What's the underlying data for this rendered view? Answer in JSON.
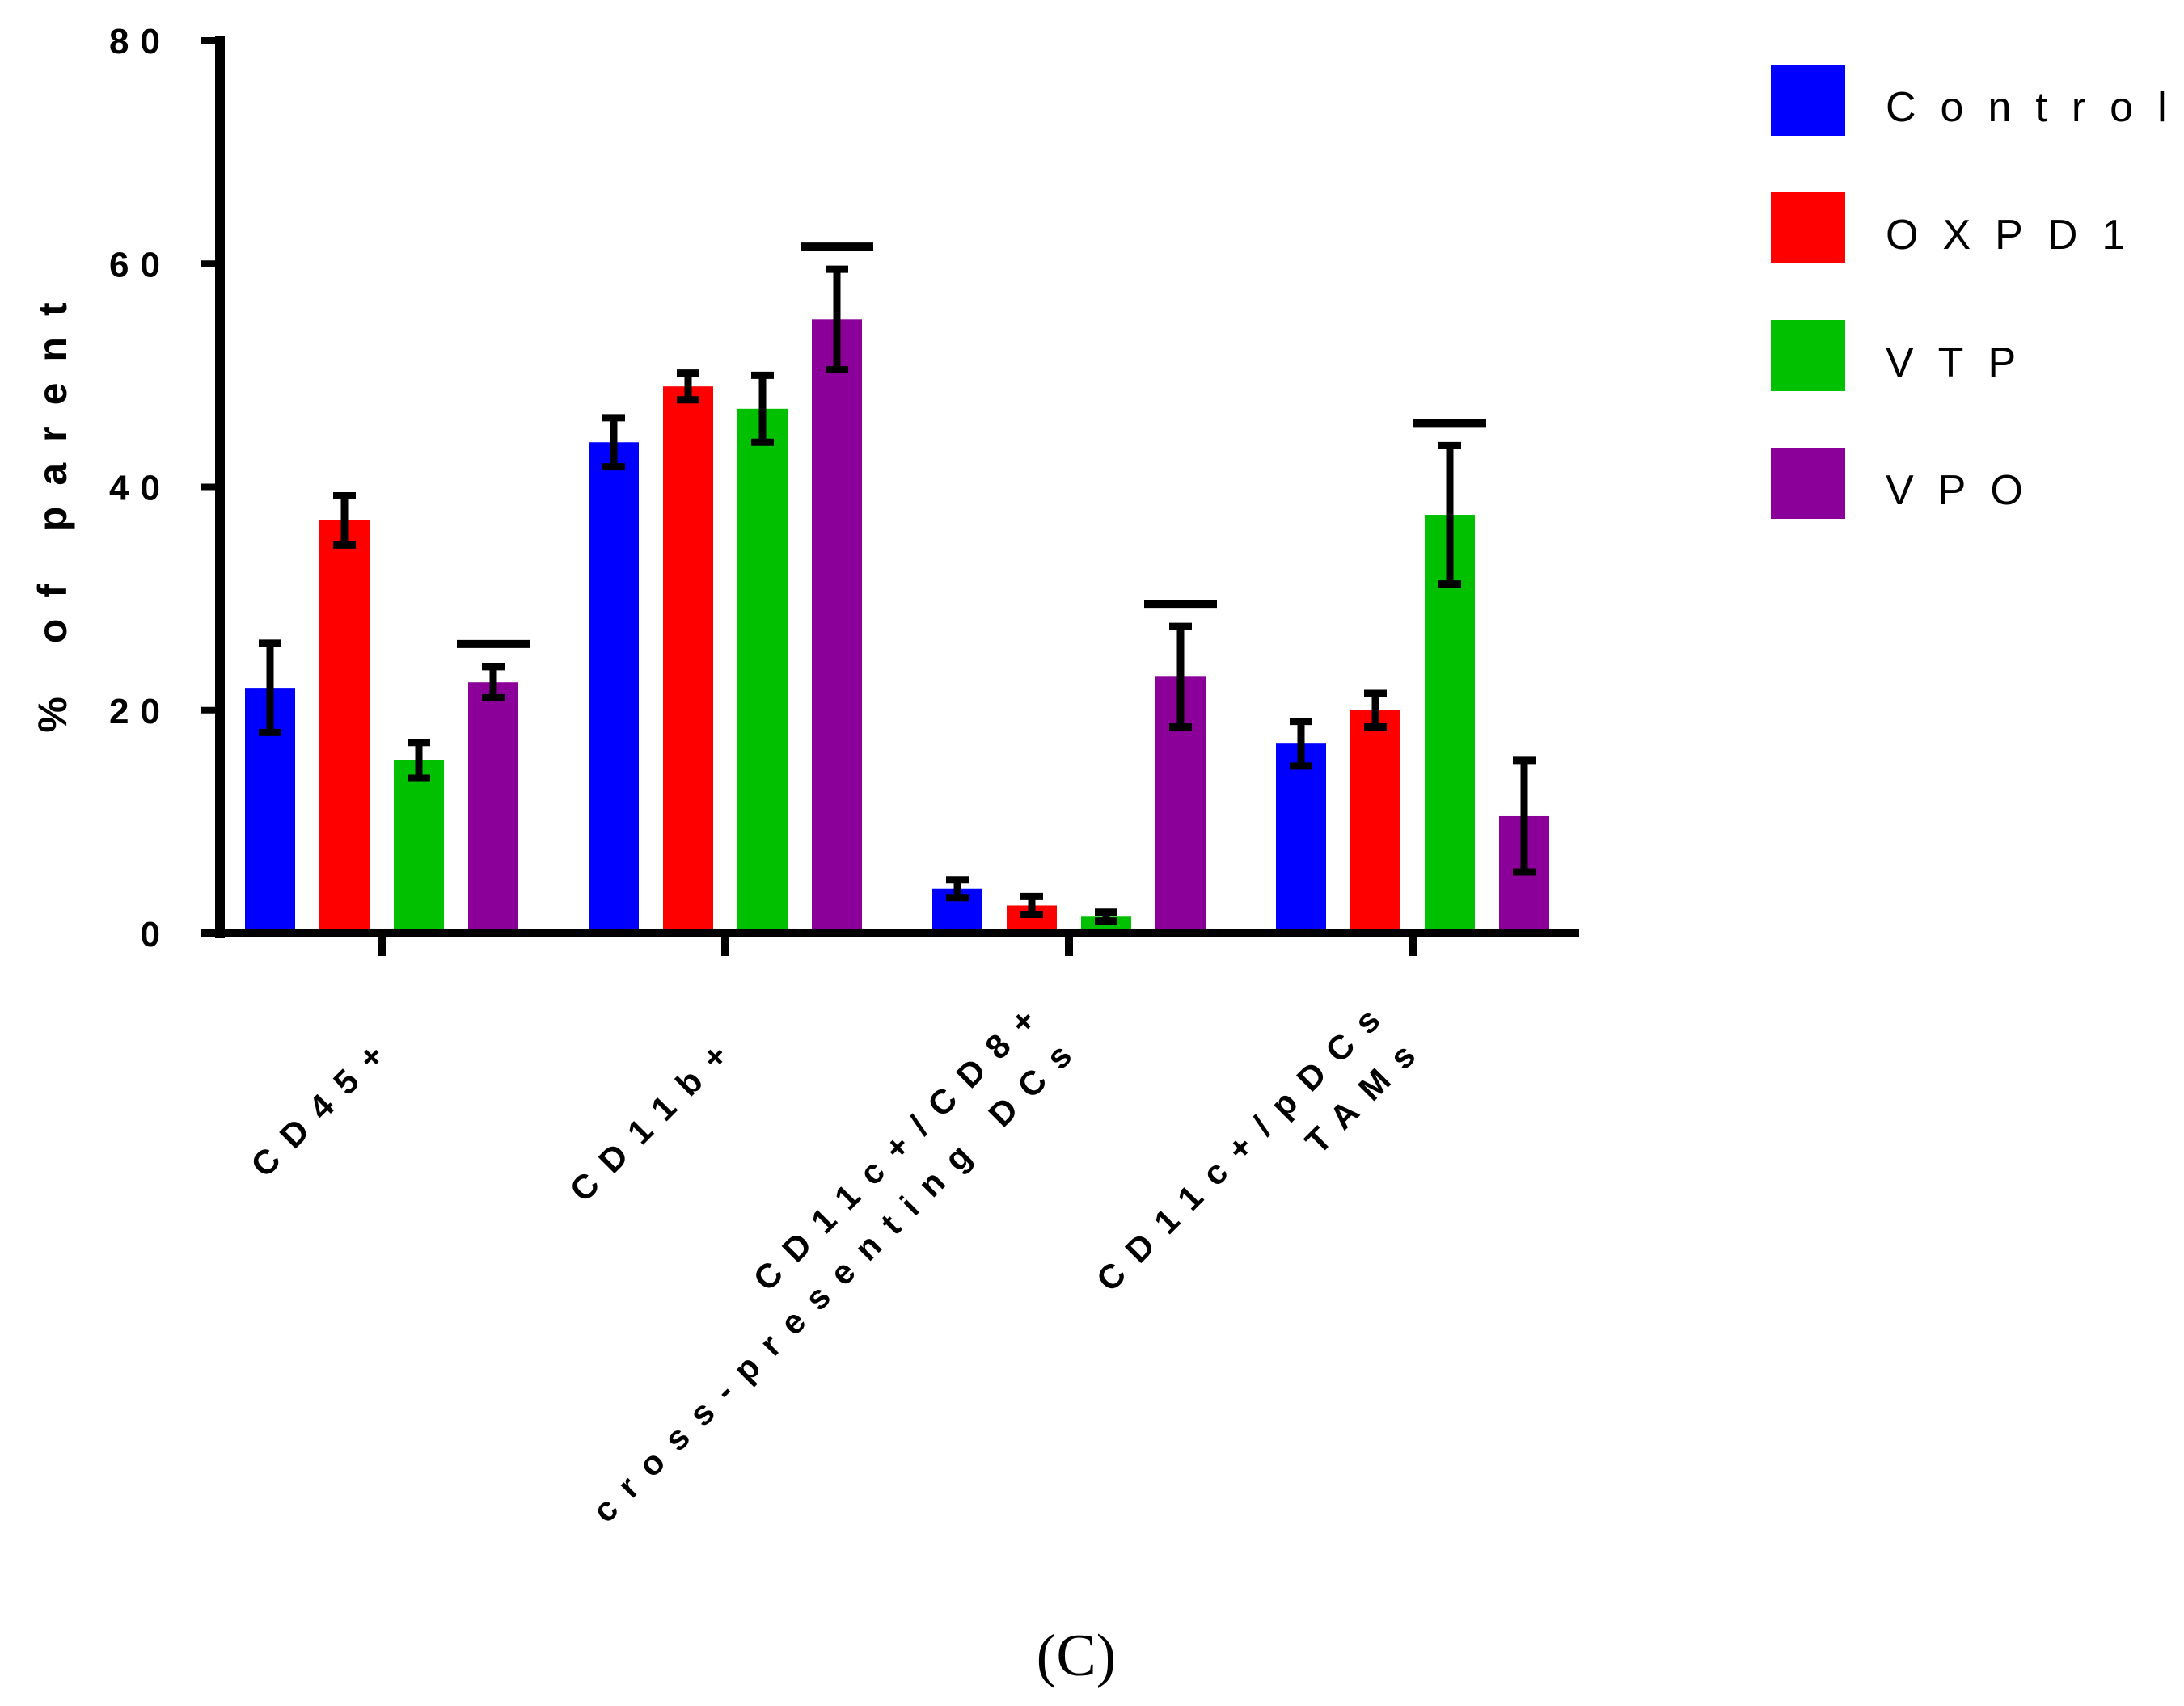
{
  "chart_data": {
    "type": "bar",
    "title": "",
    "caption": "(C)",
    "ylabel": "% of parent",
    "xlabel": "",
    "ylim": [
      0,
      80
    ],
    "yticks": [
      0,
      20,
      40,
      60,
      80
    ],
    "ytick_labels": [
      "0",
      "20",
      "40",
      "60",
      "80"
    ],
    "categories": [
      [
        "CD45+"
      ],
      [
        "CD11b+"
      ],
      [
        "CD11c+/CD8+",
        "cross-presenting DCs"
      ],
      [
        "CD11c+/pDCs",
        "TAMs"
      ]
    ],
    "series": [
      {
        "name": "Control",
        "color": "#0000ff",
        "values": [
          22,
          44,
          4,
          17
        ],
        "errors": [
          4,
          2.2,
          0.8,
          2
        ]
      },
      {
        "name": "OXPD1",
        "color": "#ff0000",
        "values": [
          37,
          49,
          2.5,
          20
        ],
        "errors": [
          2.2,
          1.2,
          0.8,
          1.5
        ]
      },
      {
        "name": "VTP",
        "color": "#00c000",
        "values": [
          15.5,
          47,
          1.5,
          37.5
        ],
        "errors": [
          1.6,
          3,
          0.4,
          6.2
        ]
      },
      {
        "name": "VPO",
        "color": "#8b0099",
        "values": [
          22.5,
          55,
          23,
          10.5
        ],
        "errors": [
          1.4,
          4.5,
          4.5,
          5
        ]
      }
    ],
    "significance_bars": [
      {
        "category": 0,
        "series": 3
      },
      {
        "category": 1,
        "series": 3
      },
      {
        "category": 2,
        "series": 3
      },
      {
        "category": 3,
        "series": 2
      }
    ],
    "legend_position": "top-right",
    "grid": false
  }
}
